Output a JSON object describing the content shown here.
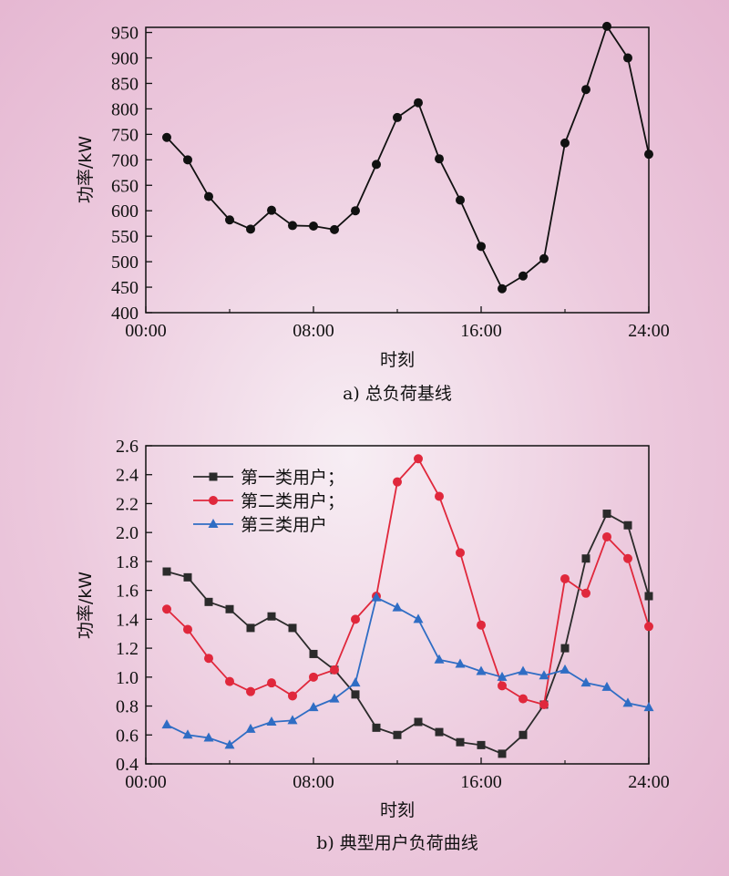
{
  "chart_data": [
    {
      "type": "line",
      "caption": "a) 总负荷基线",
      "xlabel": "时刻",
      "ylabel": "功率/kW",
      "x_ticks": [
        "00:00",
        "08:00",
        "16:00",
        "24:00"
      ],
      "y_ticks": [
        "400",
        "450",
        "500",
        "550",
        "600",
        "650",
        "700",
        "750",
        "800",
        "850",
        "900",
        "950"
      ],
      "xlim": [
        0,
        24
      ],
      "ylim": [
        400,
        960
      ],
      "marker": "circle",
      "color": "#111111",
      "series": [
        {
          "x": [
            1,
            2,
            3,
            4,
            5,
            6,
            7,
            8,
            9,
            10,
            11,
            12,
            13,
            14,
            15,
            16,
            17,
            18,
            19,
            20,
            21,
            22,
            23,
            24
          ],
          "values": [
            744,
            700,
            628,
            582,
            564,
            601,
            571,
            570,
            563,
            600,
            691,
            783,
            812,
            702,
            621,
            530,
            447,
            472,
            506,
            733,
            838,
            962,
            900,
            711
          ]
        }
      ]
    },
    {
      "type": "line",
      "caption": "b) 典型用户负荷曲线",
      "xlabel": "时刻",
      "ylabel": "功率/kW",
      "x_ticks": [
        "00:00",
        "08:00",
        "16:00",
        "24:00"
      ],
      "y_ticks": [
        "0.4",
        "0.6",
        "0.8",
        "1.0",
        "1.2",
        "1.4",
        "1.6",
        "1.8",
        "2.0",
        "2.2",
        "2.4",
        "2.6"
      ],
      "xlim": [
        0,
        24
      ],
      "ylim": [
        0.4,
        2.6
      ],
      "legend_position": "top-left",
      "series": [
        {
          "name": "第一类用户；",
          "color": "#2b2b2b",
          "marker": "square",
          "x": [
            1,
            2,
            3,
            4,
            5,
            6,
            7,
            8,
            9,
            10,
            11,
            12,
            13,
            14,
            15,
            16,
            17,
            18,
            19,
            20,
            21,
            22,
            23,
            24
          ],
          "values": [
            1.73,
            1.69,
            1.52,
            1.47,
            1.34,
            1.42,
            1.34,
            1.16,
            1.05,
            0.88,
            0.65,
            0.6,
            0.69,
            0.62,
            0.55,
            0.53,
            0.47,
            0.6,
            0.81,
            1.2,
            1.82,
            2.13,
            2.05,
            1.56
          ]
        },
        {
          "name": "第二类用户；",
          "color": "#e0283c",
          "marker": "circle",
          "x": [
            1,
            2,
            3,
            4,
            5,
            6,
            7,
            8,
            9,
            10,
            11,
            12,
            13,
            14,
            15,
            16,
            17,
            18,
            19,
            20,
            21,
            22,
            23,
            24
          ],
          "values": [
            1.47,
            1.33,
            1.13,
            0.97,
            0.9,
            0.96,
            0.87,
            1.0,
            1.05,
            1.4,
            1.56,
            2.35,
            2.51,
            2.25,
            1.86,
            1.36,
            0.94,
            0.85,
            0.81,
            1.68,
            1.58,
            1.97,
            1.82,
            1.35
          ]
        },
        {
          "name": "第三类用户",
          "color": "#2f6dc4",
          "marker": "triangle",
          "x": [
            1,
            2,
            3,
            4,
            5,
            6,
            7,
            8,
            9,
            10,
            11,
            12,
            13,
            14,
            15,
            16,
            17,
            18,
            19,
            20,
            21,
            22,
            23,
            24
          ],
          "values": [
            0.67,
            0.6,
            0.58,
            0.53,
            0.64,
            0.69,
            0.7,
            0.79,
            0.85,
            0.96,
            1.55,
            1.48,
            1.4,
            1.12,
            1.09,
            1.04,
            1.0,
            1.04,
            1.01,
            1.05,
            0.96,
            0.93,
            0.82,
            0.79
          ]
        }
      ]
    }
  ]
}
